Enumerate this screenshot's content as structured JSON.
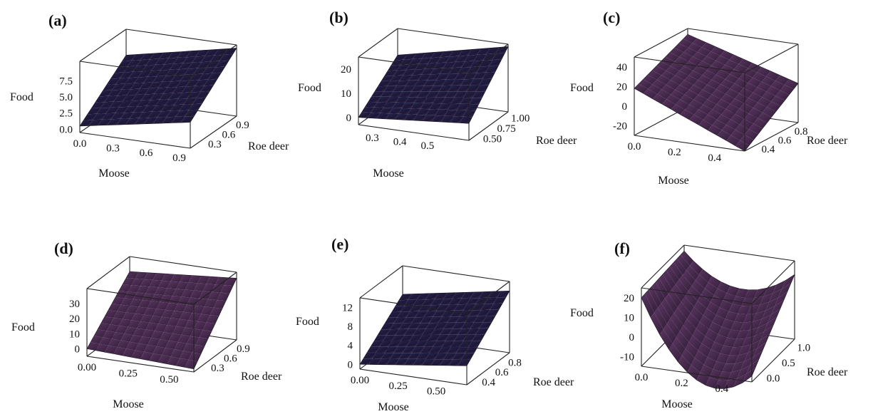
{
  "surface_color": "#45284a",
  "surface_color_dark": "#1c1838",
  "box_color": "#222222",
  "chart_data": [
    {
      "type": "surface3d",
      "panel": "(a)",
      "xlabel": "Moose",
      "ylabel": "Roe deer",
      "zlabel": "Food",
      "x_ticks": [
        "0.0",
        "0.3",
        "0.6",
        "0.9"
      ],
      "y_ticks": [
        "0.3",
        "0.6",
        "0.9"
      ],
      "z_ticks": [
        "0.0",
        "2.5",
        "5.0",
        "7.5"
      ],
      "xlim": [
        0,
        1
      ],
      "ylim": [
        0.1,
        1.1
      ],
      "zlim": [
        -0.5,
        10.5
      ],
      "corner_z": {
        "x0y0": 0.5,
        "x1y0": 3.5,
        "x0y1": 6.5,
        "x1y1": 10.0
      },
      "style": "dark"
    },
    {
      "type": "surface3d",
      "panel": "(b)",
      "xlabel": "Moose",
      "ylabel": "Roe deer",
      "zlabel": "Food",
      "x_ticks": [
        "0.3",
        "0.4",
        "0.5"
      ],
      "y_ticks": [
        "0.50",
        "0.75",
        "1.00"
      ],
      "z_ticks": [
        "0",
        "10",
        "20"
      ],
      "xlim": [
        0.25,
        0.65
      ],
      "ylim": [
        0.4,
        1.1
      ],
      "zlim": [
        -3,
        25
      ],
      "corner_z": {
        "x0y0": 0,
        "x1y0": 4,
        "x0y1": 14,
        "x1y1": 24
      },
      "style": "dark"
    },
    {
      "type": "surface3d",
      "panel": "(c)",
      "xlabel": "Moose",
      "ylabel": "Roe deer",
      "zlabel": "Food",
      "x_ticks": [
        "0.0",
        "0.2",
        "0.4"
      ],
      "y_ticks": [
        "0.4",
        "0.6",
        "0.8"
      ],
      "z_ticks": [
        "-20",
        "0",
        "20",
        "40"
      ],
      "xlim": [
        0,
        0.55
      ],
      "ylim": [
        0.3,
        0.95
      ],
      "zlim": [
        -30,
        50
      ],
      "corner_z": {
        "x0y0": 18,
        "x1y0": -30,
        "x0y1": 44,
        "x1y1": 10
      },
      "style": "light"
    },
    {
      "type": "surface3d",
      "panel": "(d)",
      "xlabel": "Moose",
      "ylabel": "Roe deer",
      "zlabel": "Food",
      "x_ticks": [
        "0.00",
        "0.25",
        "0.50"
      ],
      "y_ticks": [
        "0.3",
        "0.6",
        "0.9"
      ],
      "z_ticks": [
        "0",
        "10",
        "20",
        "30"
      ],
      "xlim": [
        0,
        0.65
      ],
      "ylim": [
        0.1,
        1.1
      ],
      "zlim": [
        -5,
        40
      ],
      "corner_z": {
        "x0y0": 0,
        "x1y0": -3,
        "x0y1": 30,
        "x1y1": 36
      },
      "style": "light"
    },
    {
      "type": "surface3d",
      "panel": "(e)",
      "xlabel": "Moose",
      "ylabel": "Roe deer",
      "zlabel": "Food",
      "x_ticks": [
        "0.00",
        "0.25",
        "0.50"
      ],
      "y_ticks": [
        "0.4",
        "0.6",
        "0.8"
      ],
      "z_ticks": [
        "0",
        "4",
        "8",
        "12"
      ],
      "xlim": [
        0,
        0.7
      ],
      "ylim": [
        0.3,
        0.95
      ],
      "zlim": [
        -1,
        14
      ],
      "corner_z": {
        "x0y0": 0,
        "x1y0": 3,
        "x0y1": 8,
        "x1y1": 12
      },
      "style": "dark"
    },
    {
      "type": "surface3d",
      "panel": "(f)",
      "xlabel": "Moose",
      "ylabel": "Roe deer",
      "zlabel": "Food",
      "x_ticks": [
        "0.0",
        "0.2",
        "0.4"
      ],
      "y_ticks": [
        "0.0",
        "0.5",
        "1.0"
      ],
      "z_ticks": [
        "-10",
        "0",
        "10",
        "20"
      ],
      "xlim": [
        0,
        0.55
      ],
      "ylim": [
        -0.2,
        1.2
      ],
      "zlim": [
        -15,
        25
      ],
      "corner_z": {
        "x0y0": 20,
        "x1y0": -12,
        "x0y1": 22,
        "x1y1": 18
      },
      "saddle": -22,
      "style": "light"
    }
  ]
}
